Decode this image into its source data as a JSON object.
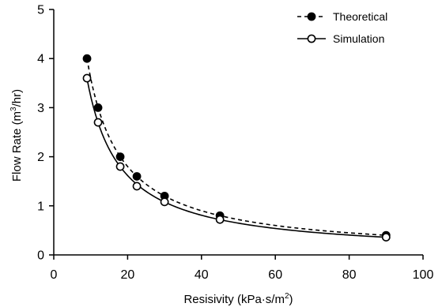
{
  "chart_data": {
    "type": "scatter",
    "xlabel": "Resisivity (kPa·s/m",
    "xlabel_sup": "2",
    "xlabel_end": ")",
    "ylabel": "Flow Rate (m",
    "ylabel_sup": "3",
    "ylabel_end": "/hr)",
    "xlim": [
      0,
      100
    ],
    "ylim": [
      0,
      5
    ],
    "xticks": [
      0,
      20,
      40,
      60,
      80,
      100
    ],
    "yticks": [
      0,
      1,
      2,
      3,
      4,
      5
    ],
    "grid": false,
    "legend_position": "top-right",
    "series": [
      {
        "name": "Theoretical",
        "marker": "filled-circle",
        "line": "dashed",
        "x": [
          9,
          12,
          18,
          22.5,
          30,
          45,
          90
        ],
        "y": [
          4.0,
          3.0,
          2.0,
          1.6,
          1.2,
          0.8,
          0.4
        ]
      },
      {
        "name": "Simulation",
        "marker": "open-circle",
        "line": "solid",
        "x": [
          9,
          12,
          18,
          22.5,
          30,
          45,
          90
        ],
        "y": [
          3.6,
          2.7,
          1.8,
          1.4,
          1.08,
          0.72,
          0.36
        ]
      }
    ]
  }
}
